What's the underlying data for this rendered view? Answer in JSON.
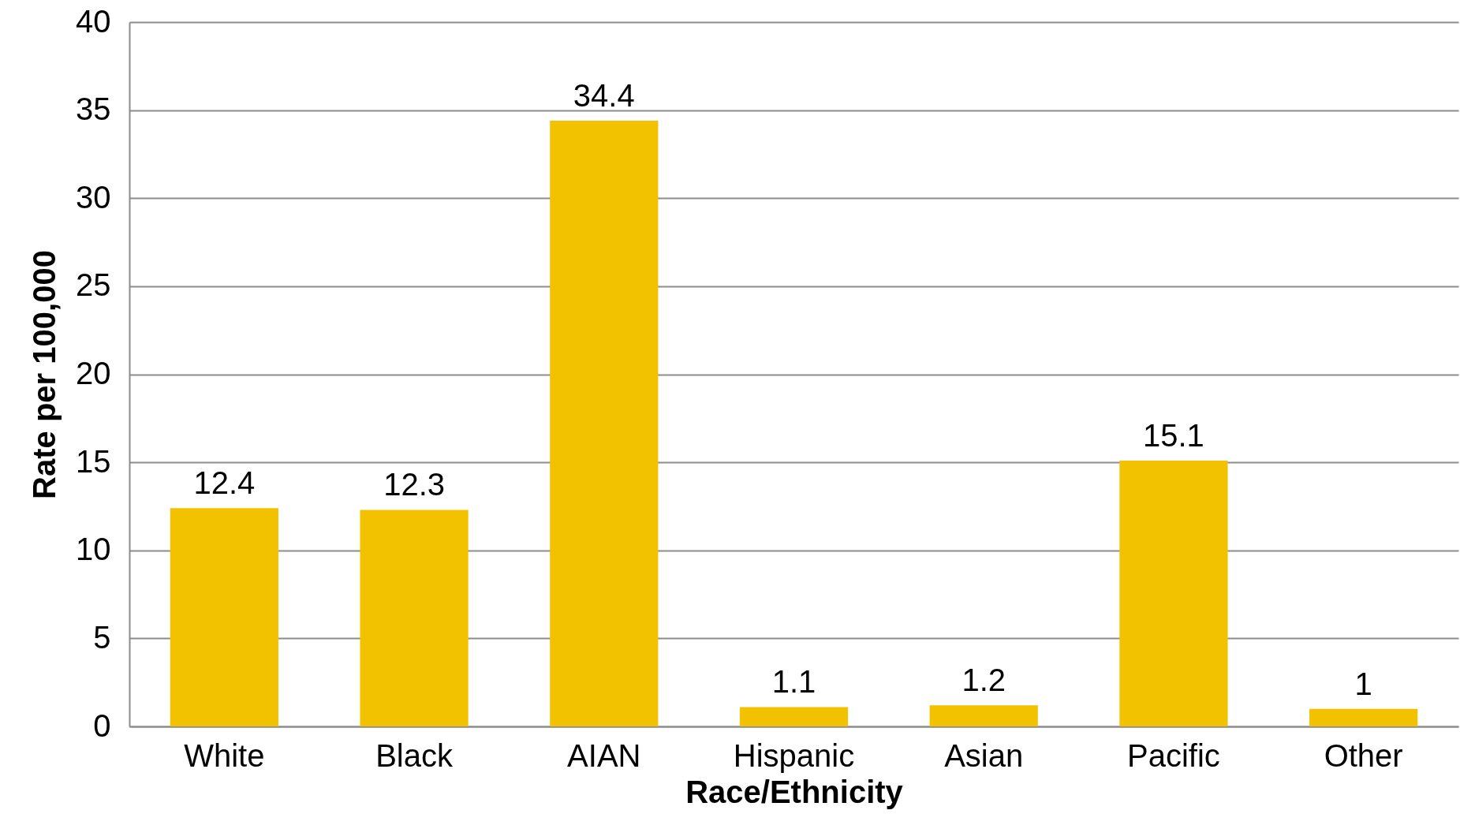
{
  "chart_data": {
    "type": "bar",
    "xlabel": "Race/Ethnicity",
    "ylabel": "Rate per 100,000",
    "categories": [
      "White",
      "Black",
      "AIAN",
      "Hispanic",
      "Asian",
      "Pacific",
      "Other"
    ],
    "values": [
      12.4,
      12.3,
      34.4,
      1.1,
      1.2,
      15.1,
      1
    ],
    "color": "#f2c200",
    "ylim": [
      0,
      40
    ],
    "yticks": [
      0,
      5,
      10,
      15,
      20,
      25,
      30,
      35,
      40
    ],
    "grid": "y",
    "data_labels": true
  }
}
